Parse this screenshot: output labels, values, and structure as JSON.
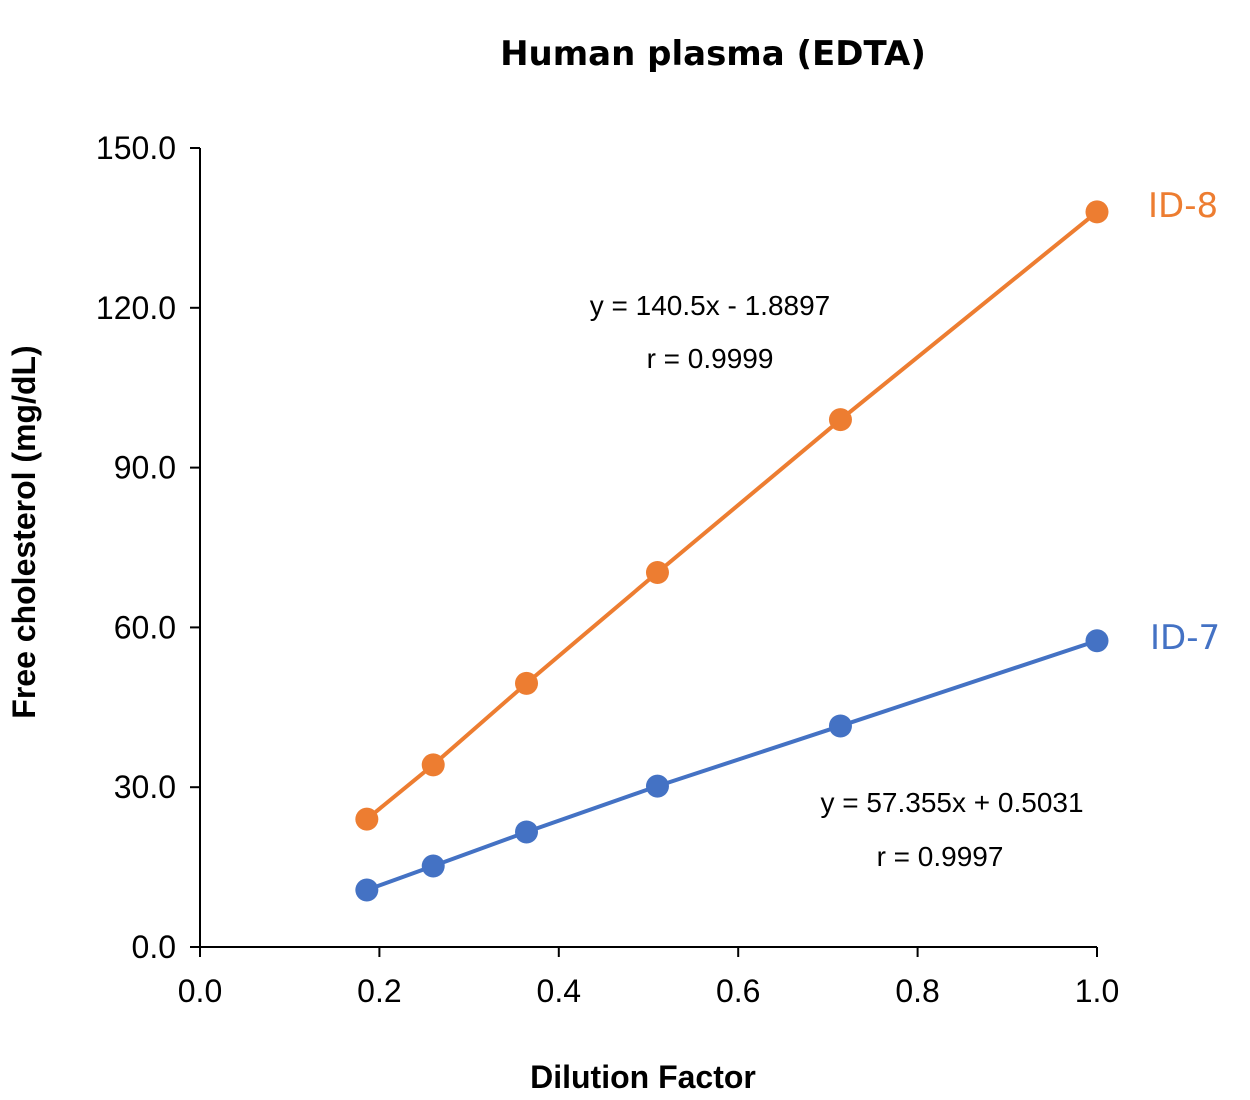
{
  "chart_data": {
    "type": "scatter",
    "title": "Human plasma (EDTA)",
    "xlabel": "Dilution Factor",
    "ylabel": "Free cholesterol (mg/dL)",
    "xlim": [
      0,
      1.0
    ],
    "ylim": [
      0,
      150
    ],
    "x_ticks": [
      "0.0",
      "0.2",
      "0.4",
      "0.6",
      "0.8",
      "1.0"
    ],
    "y_ticks": [
      "0.0",
      "30.0",
      "60.0",
      "90.0",
      "120.0",
      "150.0"
    ],
    "grid": false,
    "series": [
      {
        "name": "ID-8",
        "color": "#ED7D31",
        "x": [
          0.186,
          0.26,
          0.364,
          0.51,
          0.714,
          1.0
        ],
        "y": [
          24.0,
          34.2,
          49.5,
          70.3,
          99.0,
          138.0
        ],
        "equation": "y = 140.5x - 1.8897",
        "r": "r = 0.9999"
      },
      {
        "name": "ID-7",
        "color": "#4472C4",
        "x": [
          0.186,
          0.26,
          0.364,
          0.51,
          0.714,
          1.0
        ],
        "y": [
          10.7,
          15.2,
          21.6,
          30.2,
          41.5,
          57.5
        ],
        "equation": "y = 57.355x + 0.5031",
        "r": "r = 0.9997"
      }
    ]
  }
}
